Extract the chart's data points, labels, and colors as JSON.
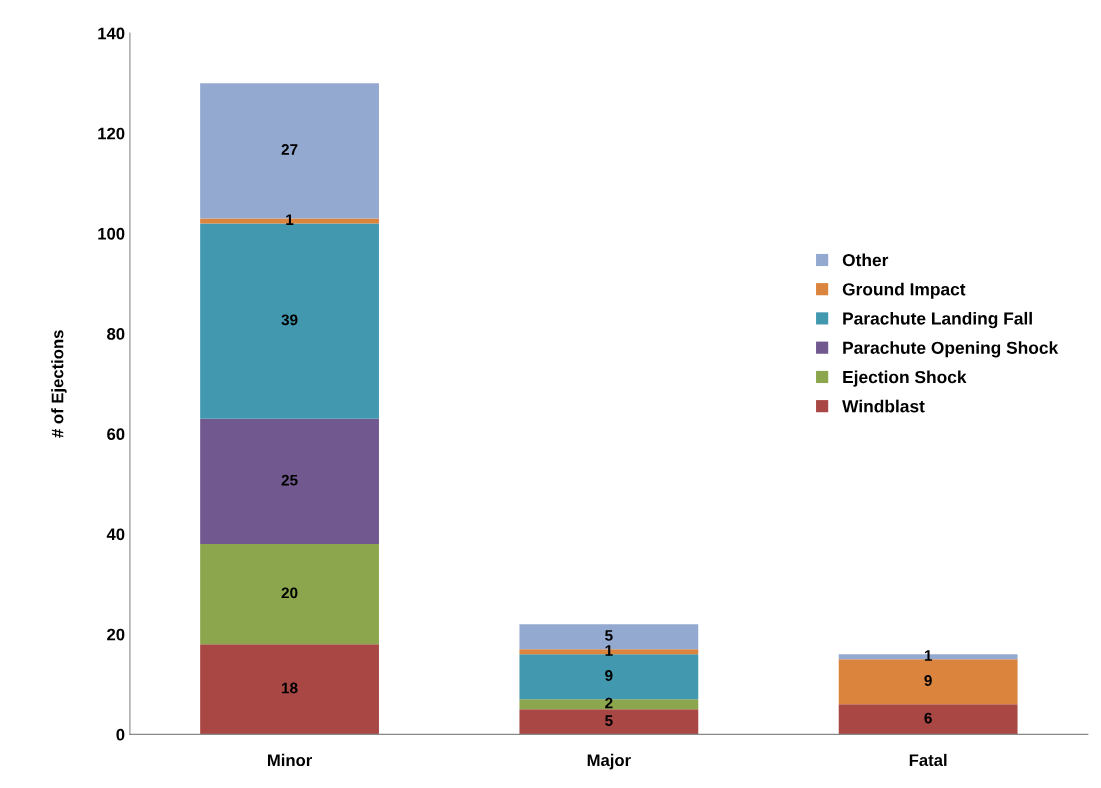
{
  "chart_data": {
    "type": "bar",
    "stacked": true,
    "ylabel": "# of Ejections",
    "categories": [
      "Minor",
      "Major",
      "Fatal"
    ],
    "series": [
      {
        "name": "Windblast",
        "color": "#a94744",
        "values": [
          18,
          5,
          6
        ],
        "value_labels": [
          "18",
          "5",
          "6"
        ]
      },
      {
        "name": "Ejection Shock",
        "color": "#8ba64c",
        "values": [
          20,
          2,
          0
        ],
        "value_labels": [
          "20",
          "2",
          null
        ]
      },
      {
        "name": "Parachute Opening Shock",
        "color": "#71588f",
        "values": [
          25,
          0,
          0
        ],
        "value_labels": [
          "25",
          null,
          null
        ]
      },
      {
        "name": "Parachute Landing Fall",
        "color": "#4298af",
        "values": [
          39,
          9,
          0
        ],
        "value_labels": [
          "39",
          "9",
          null
        ]
      },
      {
        "name": "Ground Impact",
        "color": "#db843d",
        "values": [
          1,
          1,
          9
        ],
        "value_labels": [
          "1",
          "1",
          "9"
        ]
      },
      {
        "name": "Other",
        "color": "#93a9cf",
        "values": [
          27,
          5,
          1
        ],
        "value_labels": [
          "27",
          "5",
          "1"
        ]
      }
    ],
    "ylim": [
      0,
      140
    ],
    "yticks": [
      0,
      20,
      40,
      60,
      80,
      100,
      120,
      140
    ],
    "grid": false,
    "legend": "right"
  }
}
